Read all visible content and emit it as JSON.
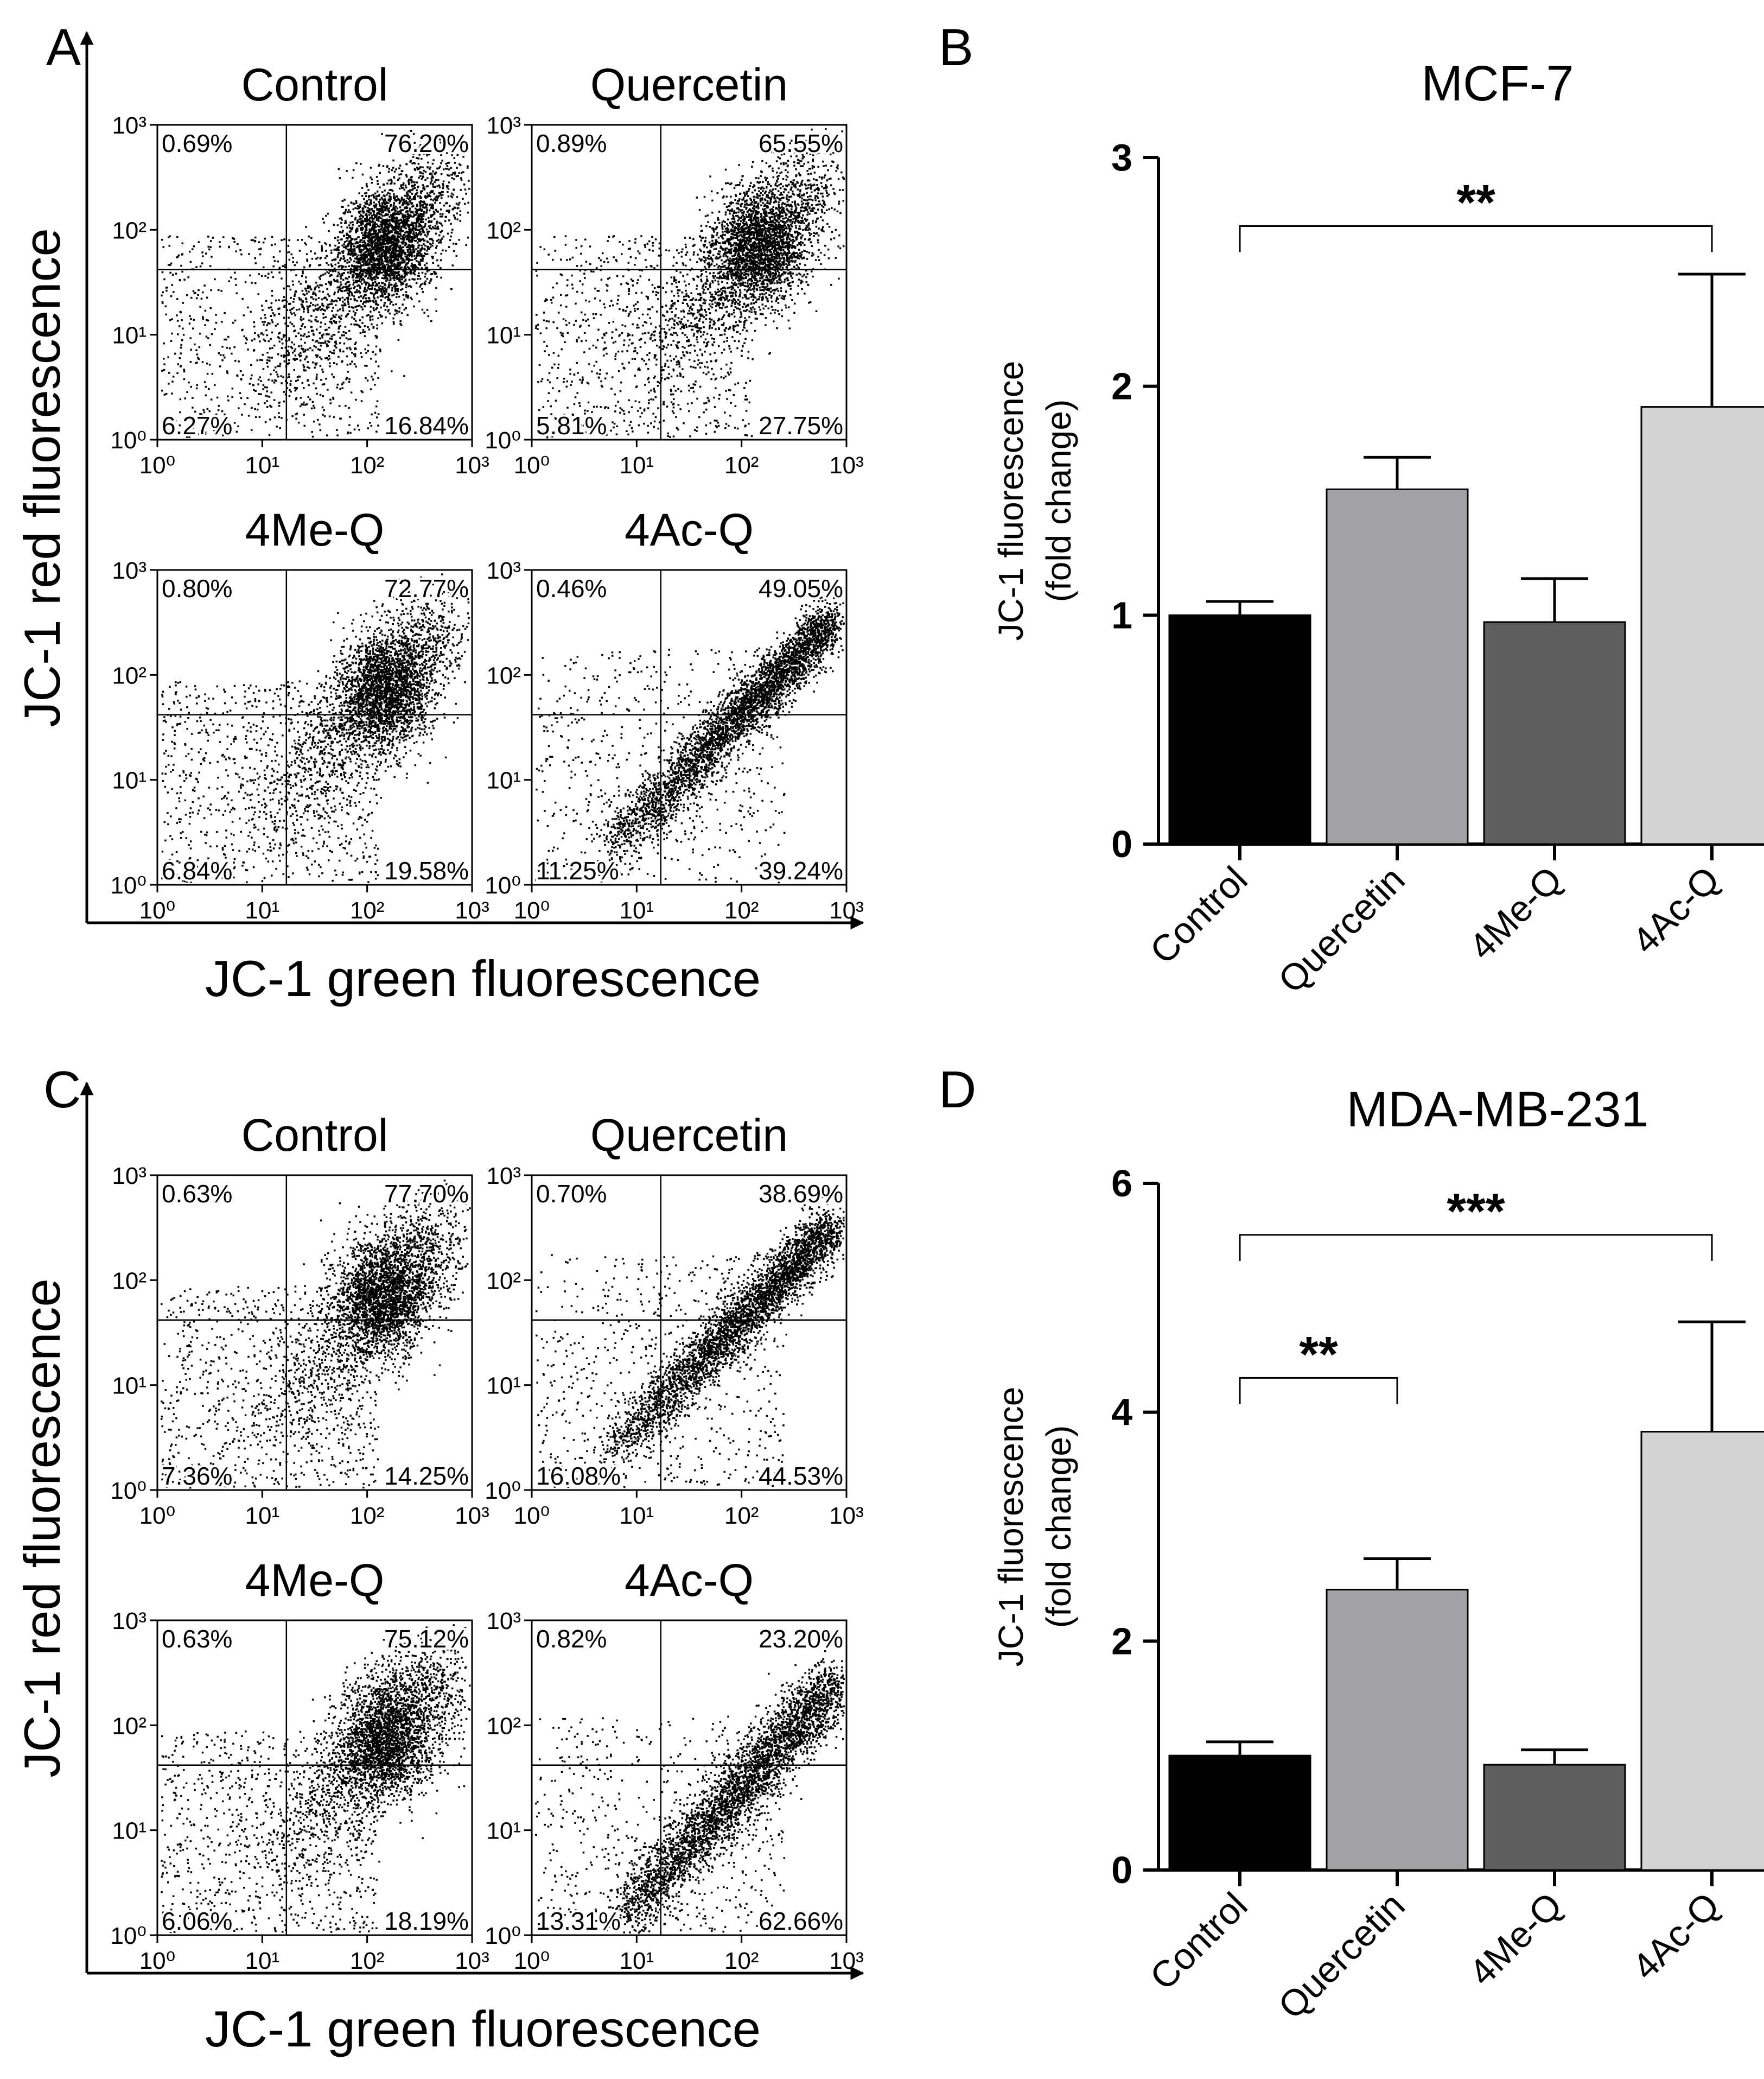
{
  "figure": {
    "panels": {
      "A": {
        "letter": "A",
        "x_axis_label": "JC-1 green fluorescence",
        "y_axis_label": "JC-1 red fluorescence",
        "plots": [
          {
            "title": "Control",
            "quadrants": {
              "ul": "0.69%",
              "ur": "76.20%",
              "ll": "6.27%",
              "lr": "16.84%"
            },
            "pattern": "diag-upper"
          },
          {
            "title": "Quercetin",
            "quadrants": {
              "ul": "0.89%",
              "ur": "65.55%",
              "ll": "5.81%",
              "lr": "27.75%"
            },
            "pattern": "diag-upper"
          },
          {
            "title": "4Me-Q",
            "quadrants": {
              "ul": "0.80%",
              "ur": "72.77%",
              "ll": "6.84%",
              "lr": "19.58%"
            },
            "pattern": "diag-upper"
          },
          {
            "title": "4Ac-Q",
            "quadrants": {
              "ul": "0.46%",
              "ur": "49.05%",
              "ll": "11.25%",
              "lr": "39.24%"
            },
            "pattern": "diag-line"
          }
        ]
      },
      "C": {
        "letter": "C",
        "x_axis_label": "JC-1 green fluorescence",
        "y_axis_label": "JC-1 red fluorescence",
        "plots": [
          {
            "title": "Control",
            "quadrants": {
              "ul": "0.63%",
              "ur": "77.70%",
              "ll": "7.36%",
              "lr": "14.25%"
            },
            "pattern": "diag-upper"
          },
          {
            "title": "Quercetin",
            "quadrants": {
              "ul": "0.70%",
              "ur": "38.69%",
              "ll": "16.08%",
              "lr": "44.53%"
            },
            "pattern": "diag-line"
          },
          {
            "title": "4Me-Q",
            "quadrants": {
              "ul": "0.63%",
              "ur": "75.12%",
              "ll": "6.06%",
              "lr": "18.19%"
            },
            "pattern": "diag-upper"
          },
          {
            "title": "4Ac-Q",
            "quadrants": {
              "ul": "0.82%",
              "ur": "23.20%",
              "ll": "13.31%",
              "lr": "62.66%"
            },
            "pattern": "diag-lower"
          }
        ]
      },
      "B": {
        "letter": "B"
      },
      "D": {
        "letter": "D"
      }
    },
    "flow_ticks": [
      "10⁰",
      "10¹",
      "10²",
      "10³"
    ]
  },
  "chart_data": [
    {
      "panel": "B",
      "type": "bar",
      "title": "MCF-7",
      "ylabel": "JC-1 fluorescence (fold change)",
      "ylabel_lines": [
        "JC-1 fluorescence",
        "(fold change)"
      ],
      "categories": [
        "Control",
        "Quercetin",
        "4Me-Q",
        "4Ac-Q"
      ],
      "values": [
        1.0,
        1.55,
        0.97,
        1.91
      ],
      "errors": [
        0.06,
        0.14,
        0.19,
        0.58
      ],
      "colors": [
        "#000000",
        "#a3a2a7",
        "#5f5f5f",
        "#d3d3d3"
      ],
      "ylim": [
        0,
        3
      ],
      "yticks": [
        0,
        1,
        2,
        3
      ],
      "significance": [
        {
          "from": 0,
          "to": 3,
          "label": "**",
          "y": 2.7
        }
      ]
    },
    {
      "panel": "D",
      "type": "bar",
      "title": "MDA-MB-231",
      "ylabel": "JC-1 fluorescence (fold change)",
      "ylabel_lines": [
        "JC-1 fluorescence",
        "(fold change)"
      ],
      "categories": [
        "Control",
        "Quercetin",
        "4Me-Q",
        "4Ac-Q"
      ],
      "values": [
        1.0,
        2.45,
        0.92,
        3.83
      ],
      "errors": [
        0.12,
        0.27,
        0.13,
        0.96
      ],
      "colors": [
        "#000000",
        "#a3a2a7",
        "#5f5f5f",
        "#d3d3d3"
      ],
      "ylim": [
        0,
        6
      ],
      "yticks": [
        0,
        2,
        4,
        6
      ],
      "significance": [
        {
          "from": 0,
          "to": 3,
          "label": "***",
          "y": 5.55
        },
        {
          "from": 0,
          "to": 1,
          "label": "**",
          "y": 4.3
        }
      ]
    }
  ]
}
